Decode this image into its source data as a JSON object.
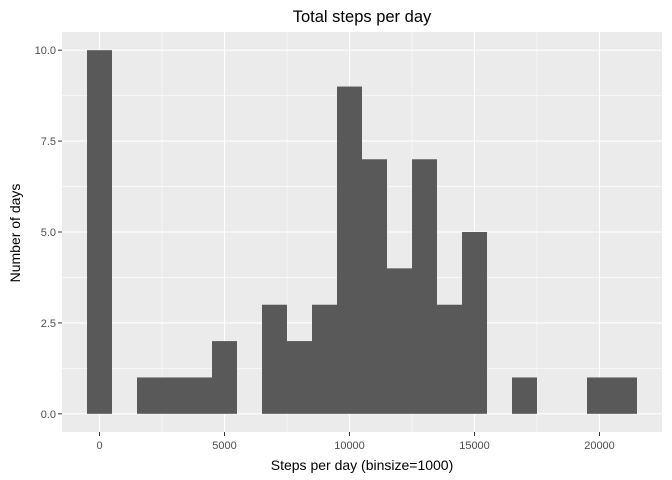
{
  "chart_data": {
    "type": "bar",
    "title": "Total steps per day",
    "xlabel": "Steps per day (binsize=1000)",
    "ylabel": "Number of days",
    "binwidth": 1000,
    "bins": [
      {
        "x": 0,
        "count": 10
      },
      {
        "x": 1000,
        "count": 0
      },
      {
        "x": 2000,
        "count": 1
      },
      {
        "x": 3000,
        "count": 1
      },
      {
        "x": 4000,
        "count": 1
      },
      {
        "x": 5000,
        "count": 2
      },
      {
        "x": 6000,
        "count": 0
      },
      {
        "x": 7000,
        "count": 3
      },
      {
        "x": 8000,
        "count": 2
      },
      {
        "x": 9000,
        "count": 3
      },
      {
        "x": 10000,
        "count": 9
      },
      {
        "x": 11000,
        "count": 7
      },
      {
        "x": 12000,
        "count": 4
      },
      {
        "x": 13000,
        "count": 7
      },
      {
        "x": 14000,
        "count": 3
      },
      {
        "x": 15000,
        "count": 5
      },
      {
        "x": 16000,
        "count": 0
      },
      {
        "x": 17000,
        "count": 1
      },
      {
        "x": 18000,
        "count": 0
      },
      {
        "x": 19000,
        "count": 0
      },
      {
        "x": 20000,
        "count": 1
      },
      {
        "x": 21000,
        "count": 1
      }
    ],
    "xlim": [
      -1500,
      22500
    ],
    "ylim": [
      -0.5,
      10.5
    ],
    "xticks": [
      0,
      5000,
      10000,
      15000,
      20000
    ],
    "xtick_labels": [
      "0",
      "5000",
      "10000",
      "15000",
      "20000"
    ],
    "yticks": [
      0,
      2.5,
      5,
      7.5,
      10
    ],
    "ytick_labels": [
      "0.0",
      "2.5",
      "5.0",
      "7.5",
      "10.0"
    ],
    "bar_color": "#595959",
    "panel_color": "#ebebeb",
    "grid": true,
    "grid_color": "#ffffff"
  }
}
